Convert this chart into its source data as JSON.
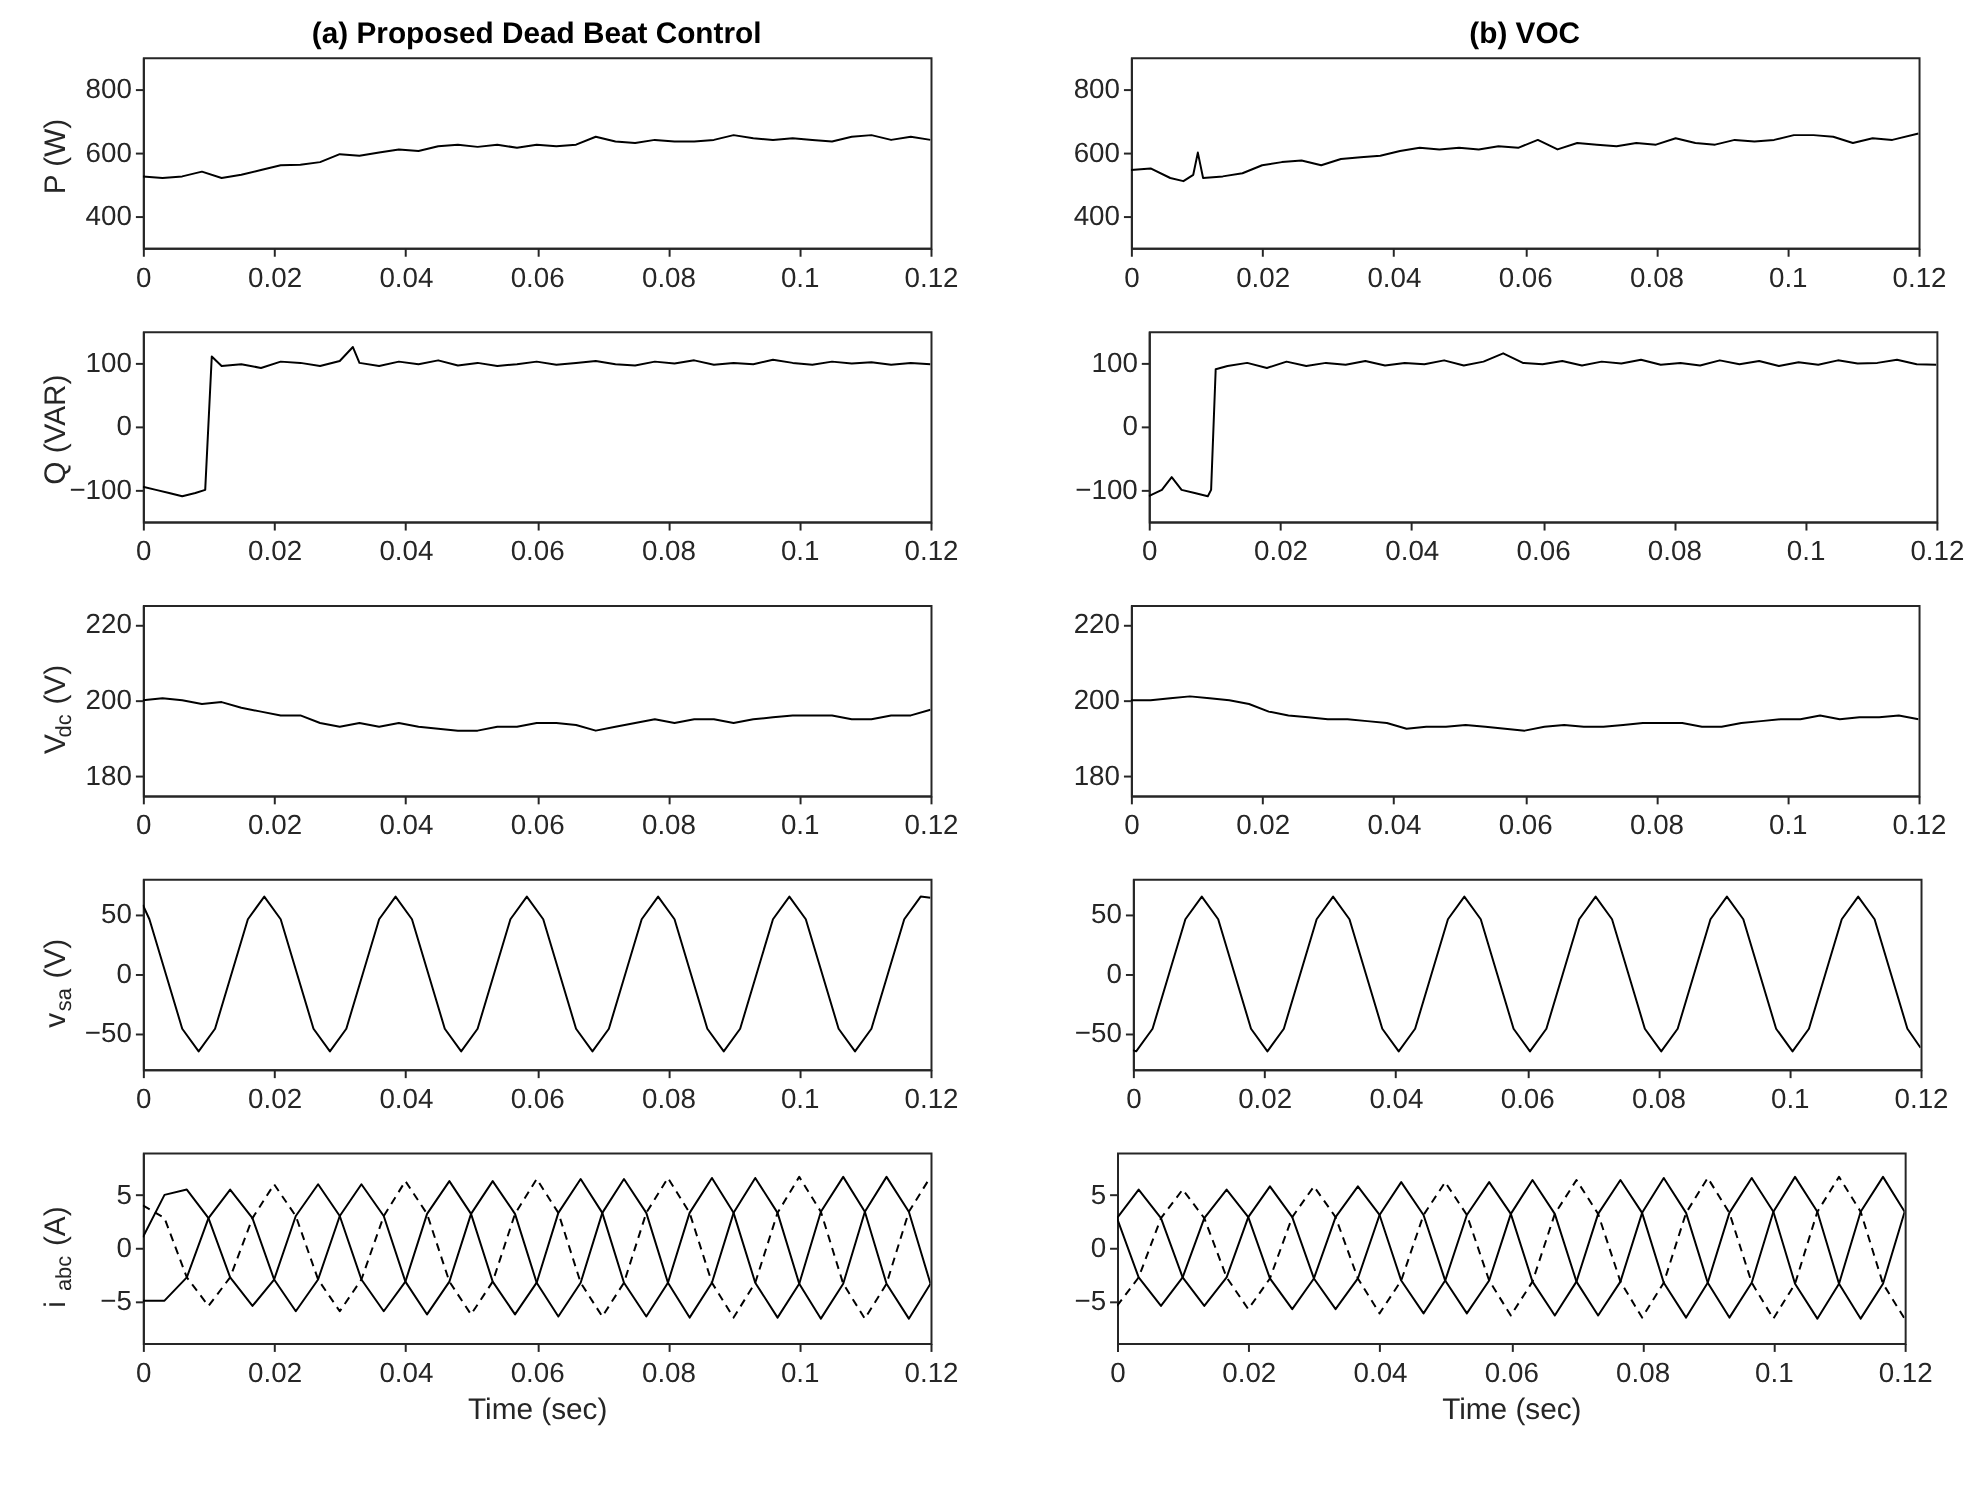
{
  "chart_data": [
    {
      "type": "line",
      "title": "(a) Proposed Dead Beat Control",
      "ylabel": "P (W)",
      "xlim": [
        0,
        0.12
      ],
      "xticks": [
        0,
        0.02,
        0.04,
        0.06,
        0.08,
        0.1,
        0.12
      ],
      "ylim": [
        300,
        900
      ],
      "yticks": [
        400,
        600,
        800
      ],
      "grid": false,
      "line_style": "solid",
      "series": [
        {
          "color": "#000000",
          "x": [
            0,
            0.003,
            0.006,
            0.009,
            0.012,
            0.015,
            0.018,
            0.021,
            0.024,
            0.027,
            0.03,
            0.033,
            0.036,
            0.039,
            0.042,
            0.045,
            0.048,
            0.051,
            0.054,
            0.057,
            0.06,
            0.063,
            0.066,
            0.069,
            0.072,
            0.075,
            0.078,
            0.081,
            0.084,
            0.087,
            0.09,
            0.093,
            0.096,
            0.099,
            0.102,
            0.105,
            0.108,
            0.111,
            0.114,
            0.117,
            0.12
          ],
          "values": [
            525,
            520,
            525,
            540,
            520,
            530,
            545,
            560,
            562,
            570,
            595,
            590,
            600,
            610,
            605,
            620,
            625,
            618,
            625,
            615,
            625,
            620,
            625,
            650,
            635,
            630,
            640,
            635,
            635,
            640,
            655,
            645,
            640,
            645,
            640,
            635,
            650,
            655,
            640,
            650,
            640
          ]
        }
      ]
    },
    {
      "type": "line",
      "title": "(b) VOC",
      "xlim": [
        0,
        0.12
      ],
      "xticks": [
        0,
        0.02,
        0.04,
        0.06,
        0.08,
        0.1,
        0.12
      ],
      "ylim": [
        300,
        900
      ],
      "yticks": [
        400,
        600,
        800
      ],
      "grid": false,
      "line_style": "solid",
      "series": [
        {
          "color": "#000000",
          "x": [
            0,
            0.003,
            0.006,
            0.008,
            0.0095,
            0.0102,
            0.011,
            0.014,
            0.017,
            0.02,
            0.023,
            0.026,
            0.029,
            0.032,
            0.035,
            0.038,
            0.041,
            0.044,
            0.047,
            0.05,
            0.053,
            0.056,
            0.059,
            0.062,
            0.065,
            0.068,
            0.071,
            0.074,
            0.077,
            0.08,
            0.083,
            0.086,
            0.089,
            0.092,
            0.095,
            0.098,
            0.101,
            0.104,
            0.107,
            0.11,
            0.113,
            0.116,
            0.12
          ],
          "values": [
            545,
            550,
            520,
            510,
            530,
            600,
            520,
            525,
            535,
            560,
            570,
            575,
            560,
            580,
            585,
            590,
            605,
            615,
            610,
            615,
            610,
            620,
            615,
            640,
            610,
            630,
            625,
            620,
            630,
            625,
            645,
            630,
            625,
            640,
            635,
            640,
            655,
            655,
            650,
            630,
            645,
            640,
            660
          ]
        }
      ]
    },
    {
      "type": "line",
      "ylabel": "Q (VAR)",
      "xlim": [
        0,
        0.12
      ],
      "xticks": [
        0,
        0.02,
        0.04,
        0.06,
        0.08,
        0.1,
        0.12
      ],
      "ylim": [
        -150,
        150
      ],
      "yticks": [
        -100,
        0,
        100
      ],
      "grid": false,
      "line_style": "solid",
      "series": [
        {
          "color": "#000000",
          "x": [
            0,
            0.002,
            0.004,
            0.006,
            0.008,
            0.0095,
            0.0105,
            0.012,
            0.015,
            0.018,
            0.021,
            0.024,
            0.027,
            0.03,
            0.032,
            0.033,
            0.036,
            0.039,
            0.042,
            0.045,
            0.048,
            0.051,
            0.054,
            0.057,
            0.06,
            0.063,
            0.066,
            0.069,
            0.072,
            0.075,
            0.078,
            0.081,
            0.084,
            0.087,
            0.09,
            0.093,
            0.096,
            0.099,
            0.102,
            0.105,
            0.108,
            0.111,
            0.114,
            0.117,
            0.12
          ],
          "values": [
            -95,
            -100,
            -105,
            -110,
            -105,
            -100,
            110,
            95,
            98,
            92,
            102,
            100,
            95,
            103,
            125,
            100,
            95,
            102,
            98,
            104,
            96,
            100,
            95,
            98,
            102,
            97,
            100,
            103,
            98,
            96,
            102,
            99,
            104,
            97,
            100,
            98,
            105,
            100,
            97,
            102,
            99,
            101,
            97,
            100,
            98
          ]
        }
      ]
    },
    {
      "type": "line",
      "xlim": [
        0,
        0.12
      ],
      "xticks": [
        0,
        0.02,
        0.04,
        0.06,
        0.08,
        0.1,
        0.12
      ],
      "ylim": [
        -150,
        150
      ],
      "yticks": [
        -100,
        0,
        100
      ],
      "grid": false,
      "line_style": "solid",
      "series": [
        {
          "color": "#000000",
          "x": [
            0,
            0.002,
            0.0035,
            0.005,
            0.007,
            0.009,
            0.0095,
            0.0102,
            0.012,
            0.015,
            0.018,
            0.021,
            0.024,
            0.027,
            0.03,
            0.033,
            0.036,
            0.039,
            0.042,
            0.045,
            0.048,
            0.051,
            0.054,
            0.057,
            0.06,
            0.063,
            0.066,
            0.069,
            0.072,
            0.075,
            0.078,
            0.081,
            0.084,
            0.087,
            0.09,
            0.093,
            0.096,
            0.099,
            0.102,
            0.105,
            0.108,
            0.111,
            0.114,
            0.117,
            0.12
          ],
          "values": [
            -110,
            -100,
            -80,
            -100,
            -105,
            -110,
            -100,
            90,
            95,
            100,
            92,
            102,
            95,
            100,
            97,
            103,
            96,
            100,
            98,
            104,
            96,
            102,
            115,
            100,
            98,
            103,
            96,
            102,
            99,
            105,
            97,
            100,
            96,
            104,
            98,
            103,
            95,
            101,
            97,
            104,
            99,
            100,
            105,
            98,
            97
          ]
        }
      ]
    },
    {
      "type": "line",
      "ylabel": "V$_{dc}$ (V)",
      "xlim": [
        0,
        0.12
      ],
      "xticks": [
        0,
        0.02,
        0.04,
        0.06,
        0.08,
        0.1,
        0.12
      ],
      "ylim": [
        175,
        225
      ],
      "yticks": [
        180,
        200,
        220
      ],
      "grid": false,
      "line_style": "solid",
      "series": [
        {
          "color": "#000000",
          "x": [
            0,
            0.003,
            0.006,
            0.009,
            0.012,
            0.015,
            0.018,
            0.021,
            0.024,
            0.027,
            0.03,
            0.033,
            0.036,
            0.039,
            0.042,
            0.045,
            0.048,
            0.051,
            0.054,
            0.057,
            0.06,
            0.063,
            0.066,
            0.069,
            0.072,
            0.075,
            0.078,
            0.081,
            0.084,
            0.087,
            0.09,
            0.093,
            0.096,
            0.099,
            0.102,
            0.105,
            0.108,
            0.111,
            0.114,
            0.117,
            0.12
          ],
          "values": [
            200,
            200.5,
            200,
            199,
            199.5,
            198,
            197,
            196,
            196,
            194,
            193,
            194,
            193,
            194,
            193,
            192.5,
            192,
            192,
            193,
            193,
            194,
            194,
            193.5,
            192,
            193,
            194,
            195,
            194,
            195,
            195,
            194,
            195,
            195.5,
            196,
            196,
            196,
            195,
            195,
            196,
            196,
            197.5
          ]
        }
      ]
    },
    {
      "type": "line",
      "xlim": [
        0,
        0.12
      ],
      "xticks": [
        0,
        0.02,
        0.04,
        0.06,
        0.08,
        0.1,
        0.12
      ],
      "ylim": [
        175,
        225
      ],
      "yticks": [
        180,
        200,
        220
      ],
      "grid": false,
      "line_style": "solid",
      "series": [
        {
          "color": "#000000",
          "x": [
            0,
            0.003,
            0.006,
            0.009,
            0.012,
            0.015,
            0.018,
            0.021,
            0.024,
            0.027,
            0.03,
            0.033,
            0.036,
            0.039,
            0.042,
            0.045,
            0.048,
            0.051,
            0.054,
            0.057,
            0.06,
            0.063,
            0.066,
            0.069,
            0.072,
            0.075,
            0.078,
            0.081,
            0.084,
            0.087,
            0.09,
            0.093,
            0.096,
            0.099,
            0.102,
            0.105,
            0.108,
            0.111,
            0.114,
            0.117,
            0.12
          ],
          "values": [
            200,
            200,
            200.5,
            201,
            200.5,
            200,
            199,
            197,
            196,
            195.5,
            195,
            195,
            194.5,
            194,
            192.5,
            193,
            193,
            193.5,
            193,
            192.5,
            192,
            193,
            193.5,
            193,
            193,
            193.5,
            194,
            194,
            194,
            193,
            193,
            194,
            194.5,
            195,
            195,
            196,
            195,
            195.5,
            195.5,
            196,
            195
          ]
        }
      ]
    },
    {
      "type": "line",
      "ylabel": "v$_{sa}$ (V)",
      "xlim": [
        0,
        0.12
      ],
      "xticks": [
        0,
        0.02,
        0.04,
        0.06,
        0.08,
        0.1,
        0.12
      ],
      "ylim": [
        -80,
        80
      ],
      "yticks": [
        -50,
        0,
        50
      ],
      "grid": false,
      "line_style": "solid",
      "series": [
        {
          "color": "#000000",
          "x": [
            0,
            0.001,
            0.0035,
            0.006,
            0.0085,
            0.011,
            0.0135,
            0.016,
            0.0185,
            0.021,
            0.0235,
            0.026,
            0.0285,
            0.031,
            0.0335,
            0.036,
            0.0385,
            0.041,
            0.0435,
            0.046,
            0.0485,
            0.051,
            0.0535,
            0.056,
            0.0585,
            0.061,
            0.0635,
            0.066,
            0.0685,
            0.071,
            0.0735,
            0.076,
            0.0785,
            0.081,
            0.0835,
            0.086,
            0.0885,
            0.091,
            0.0935,
            0.096,
            0.0985,
            0.101,
            0.1035,
            0.106,
            0.1085,
            0.111,
            0.1135,
            0.116,
            0.1185,
            0.12
          ],
          "values": [
            58,
            46,
            0,
            -46,
            -65,
            -46,
            0,
            46,
            65,
            46,
            0,
            -46,
            -65,
            -46,
            0,
            46,
            65,
            46,
            0,
            -46,
            -65,
            -46,
            0,
            46,
            65,
            46,
            0,
            -46,
            -65,
            -46,
            0,
            46,
            65,
            46,
            0,
            -46,
            -65,
            -46,
            0,
            46,
            65,
            46,
            0,
            -46,
            -65,
            -46,
            0,
            46,
            65,
            64
          ]
        }
      ]
    },
    {
      "type": "line",
      "xlim": [
        0,
        0.12
      ],
      "xticks": [
        0,
        0.02,
        0.04,
        0.06,
        0.08,
        0.1,
        0.12
      ],
      "ylim": [
        -80,
        80
      ],
      "yticks": [
        -50,
        0,
        50
      ],
      "grid": false,
      "line_style": "solid",
      "series": [
        {
          "color": "#000000",
          "x": [
            0,
            0.0005,
            0.003,
            0.0055,
            0.008,
            0.0105,
            0.013,
            0.0155,
            0.018,
            0.0205,
            0.023,
            0.0255,
            0.028,
            0.0305,
            0.033,
            0.0355,
            0.038,
            0.0405,
            0.043,
            0.0455,
            0.048,
            0.0505,
            0.053,
            0.0555,
            0.058,
            0.0605,
            0.063,
            0.0655,
            0.068,
            0.0705,
            0.073,
            0.0755,
            0.078,
            0.0805,
            0.083,
            0.0855,
            0.088,
            0.0905,
            0.093,
            0.0955,
            0.098,
            0.1005,
            0.103,
            0.1055,
            0.108,
            0.1105,
            0.113,
            0.1155,
            0.118,
            0.12
          ],
          "values": [
            -64,
            -65,
            -46,
            0,
            46,
            65,
            46,
            0,
            -46,
            -65,
            -46,
            0,
            46,
            65,
            46,
            0,
            -46,
            -65,
            -46,
            0,
            46,
            65,
            46,
            0,
            -46,
            -65,
            -46,
            0,
            46,
            65,
            46,
            0,
            -46,
            -65,
            -46,
            0,
            46,
            65,
            46,
            0,
            -46,
            -65,
            -46,
            0,
            46,
            65,
            46,
            0,
            -46,
            -62
          ]
        }
      ]
    },
    {
      "type": "line",
      "ylabel": "i$_{abc}$ (A)",
      "xlabel": "Time (sec)",
      "xlim": [
        0,
        0.12
      ],
      "xticks": [
        0,
        0.02,
        0.04,
        0.06,
        0.08,
        0.1,
        0.12
      ],
      "ylim": [
        -9,
        9
      ],
      "yticks": [
        -5,
        0,
        5
      ],
      "grid": false,
      "line_style": "solid",
      "x": [
        0,
        0.0033,
        0.0067,
        0.01,
        0.0133,
        0.0167,
        0.02,
        0.0233,
        0.0267,
        0.03,
        0.0333,
        0.0367,
        0.04,
        0.0433,
        0.0467,
        0.05,
        0.0533,
        0.0567,
        0.06,
        0.0633,
        0.0667,
        0.07,
        0.0733,
        0.0767,
        0.08,
        0.0833,
        0.0867,
        0.09,
        0.0933,
        0.0967,
        0.1,
        0.1033,
        0.1067,
        0.11,
        0.1133,
        0.1167,
        0.12
      ],
      "series": [
        {
          "color": "#000000",
          "line_style": "dashed",
          "values": [
            4,
            2.8,
            -2.8,
            -5.5,
            -2.8,
            2.8,
            6,
            3,
            -3,
            -6,
            -3,
            3,
            6.3,
            3.2,
            -3.2,
            -6.3,
            -3.2,
            3.2,
            6.5,
            3.3,
            -3.3,
            -6.5,
            -3.3,
            3.3,
            6.6,
            3.3,
            -3.3,
            -6.6,
            -3.3,
            3.3,
            6.7,
            3.4,
            -3.4,
            -6.7,
            -3.4,
            3.4,
            6.7
          ]
        },
        {
          "color": "#000000",
          "values": [
            -5,
            -5,
            -2.8,
            2.8,
            5.5,
            2.8,
            -3,
            -6,
            -3,
            3,
            6,
            3,
            -3.2,
            -6.3,
            -3.2,
            3.2,
            6.3,
            3.2,
            -3.3,
            -6.5,
            -3.3,
            3.3,
            6.5,
            3.3,
            -3.3,
            -6.6,
            -3.3,
            3.3,
            6.6,
            3.3,
            -3.4,
            -6.7,
            -3.4,
            3.4,
            6.7,
            3.4,
            -3.4
          ]
        },
        {
          "color": "#000000",
          "values": [
            1,
            5,
            5.5,
            2.8,
            -2.8,
            -5.5,
            -3,
            3,
            6,
            3,
            -3,
            -6,
            -3.2,
            3.2,
            6.3,
            3.2,
            -3.2,
            -6.3,
            -3.3,
            3.3,
            6.5,
            3.3,
            -3.3,
            -6.5,
            -3.3,
            3.3,
            6.6,
            3.3,
            -3.3,
            -6.6,
            -3.4,
            3.4,
            6.7,
            3.4,
            -3.4,
            -6.7,
            -3.4
          ]
        }
      ]
    },
    {
      "type": "line",
      "xlabel": "Time (sec)",
      "xlim": [
        0,
        0.12
      ],
      "xticks": [
        0,
        0.02,
        0.04,
        0.06,
        0.08,
        0.1,
        0.12
      ],
      "ylim": [
        -9,
        9
      ],
      "yticks": [
        -5,
        0,
        5
      ],
      "grid": false,
      "line_style": "solid",
      "x": [
        0,
        0.0033,
        0.0067,
        0.01,
        0.0133,
        0.0167,
        0.02,
        0.0233,
        0.0267,
        0.03,
        0.0333,
        0.0367,
        0.04,
        0.0433,
        0.0467,
        0.05,
        0.0533,
        0.0567,
        0.06,
        0.0633,
        0.0667,
        0.07,
        0.0733,
        0.0767,
        0.08,
        0.0833,
        0.0867,
        0.09,
        0.0933,
        0.0967,
        0.1,
        0.1033,
        0.1067,
        0.11,
        0.1133,
        0.1167,
        0.12
      ],
      "series": [
        {
          "color": "#000000",
          "line_style": "dashed",
          "values": [
            -5.5,
            -2.8,
            2.8,
            5.5,
            2.8,
            -2.8,
            -5.8,
            -2.9,
            2.9,
            5.8,
            2.9,
            -2.9,
            -6.2,
            -3.1,
            3.1,
            6.2,
            3.1,
            -3.1,
            -6.4,
            -3.2,
            3.2,
            6.4,
            3.2,
            -3.2,
            -6.6,
            -3.3,
            3.3,
            6.6,
            3.3,
            -3.3,
            -6.7,
            -3.4,
            3.4,
            6.7,
            3.4,
            -3.4,
            -6.7
          ]
        },
        {
          "color": "#000000",
          "values": [
            2.8,
            5.5,
            2.8,
            -2.8,
            -5.5,
            -2.8,
            2.9,
            5.8,
            2.9,
            -2.9,
            -5.8,
            -2.9,
            3.1,
            6.2,
            3.1,
            -3.1,
            -6.2,
            -3.1,
            3.2,
            6.4,
            3.2,
            -3.2,
            -6.4,
            -3.2,
            3.3,
            6.6,
            3.3,
            -3.3,
            -6.6,
            -3.3,
            3.4,
            6.7,
            3.4,
            -3.4,
            -6.7,
            -3.4,
            3.4
          ]
        },
        {
          "color": "#000000",
          "values": [
            2.8,
            -2.8,
            -5.5,
            -2.8,
            2.8,
            5.5,
            2.9,
            -2.9,
            -5.8,
            -2.9,
            2.9,
            5.8,
            3.1,
            -3.1,
            -6.2,
            -3.1,
            3.1,
            6.2,
            3.2,
            -3.2,
            -6.4,
            -3.2,
            3.2,
            6.4,
            3.3,
            -3.3,
            -6.6,
            -3.3,
            3.3,
            6.6,
            3.4,
            -3.4,
            -6.7,
            -3.4,
            3.4,
            6.7,
            3.4
          ]
        }
      ]
    }
  ]
}
